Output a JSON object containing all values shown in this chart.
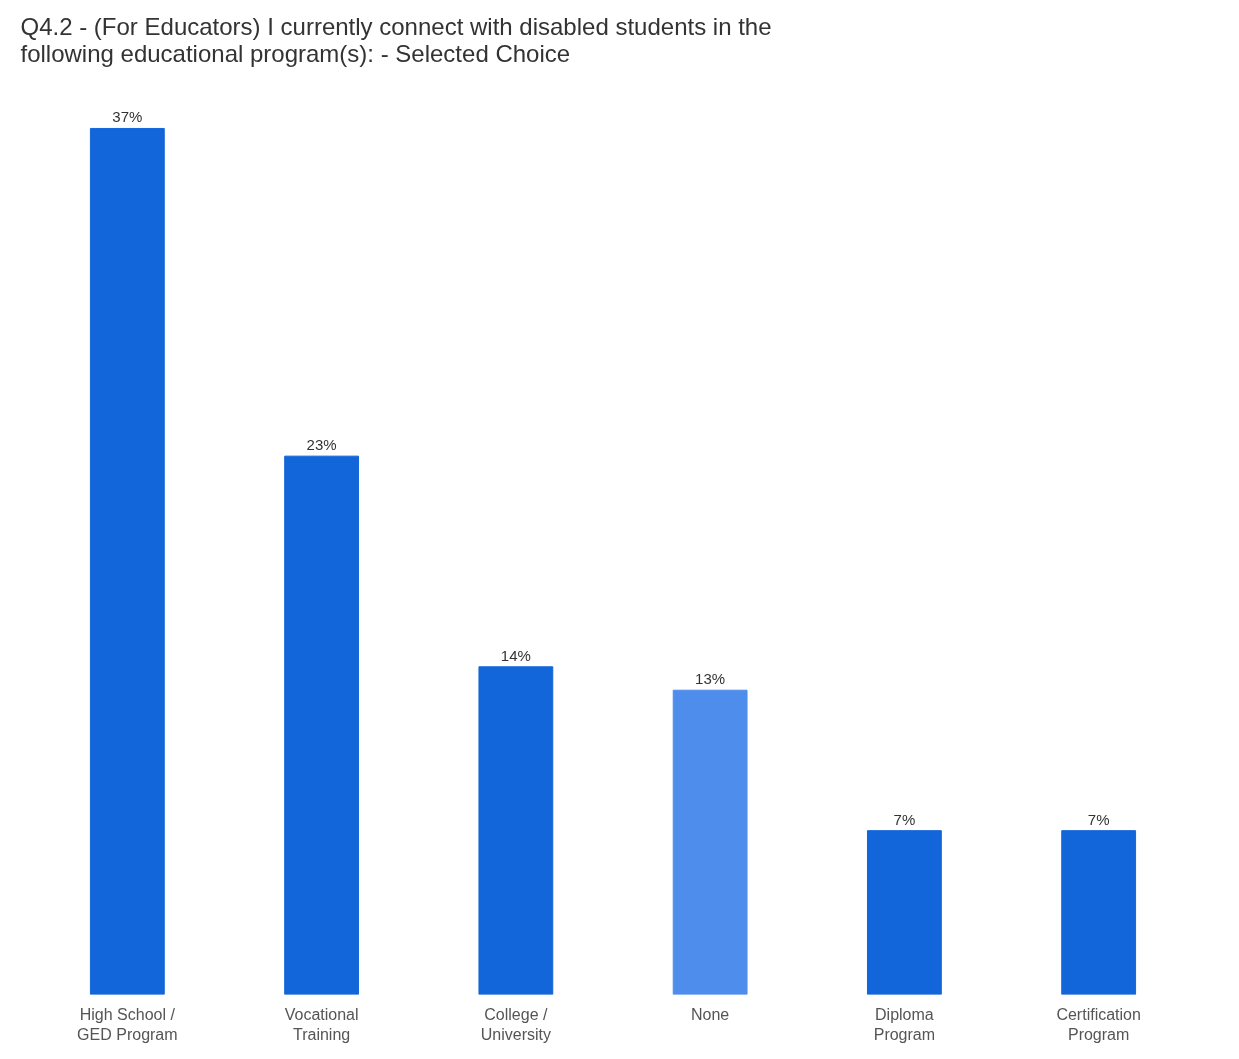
{
  "chart_data": {
    "type": "bar",
    "title": "Q4.2 - (For Educators) I currently connect with disabled students in the following educational program(s): - Selected Choice",
    "categories": [
      "High School /\nGED Program",
      "Vocational\nTraining",
      "College /\nUniversity",
      "None",
      "Diploma\nProgram",
      "Certification\nProgram"
    ],
    "values": [
      37,
      23,
      14,
      13,
      7,
      7
    ],
    "colors": [
      "#1366d9",
      "#1366d9",
      "#1366d9",
      "#4f8ded",
      "#1366d9",
      "#1366d9"
    ],
    "value_labels": [
      "37%",
      "23%",
      "14%",
      "13%",
      "7%",
      "7%"
    ]
  }
}
